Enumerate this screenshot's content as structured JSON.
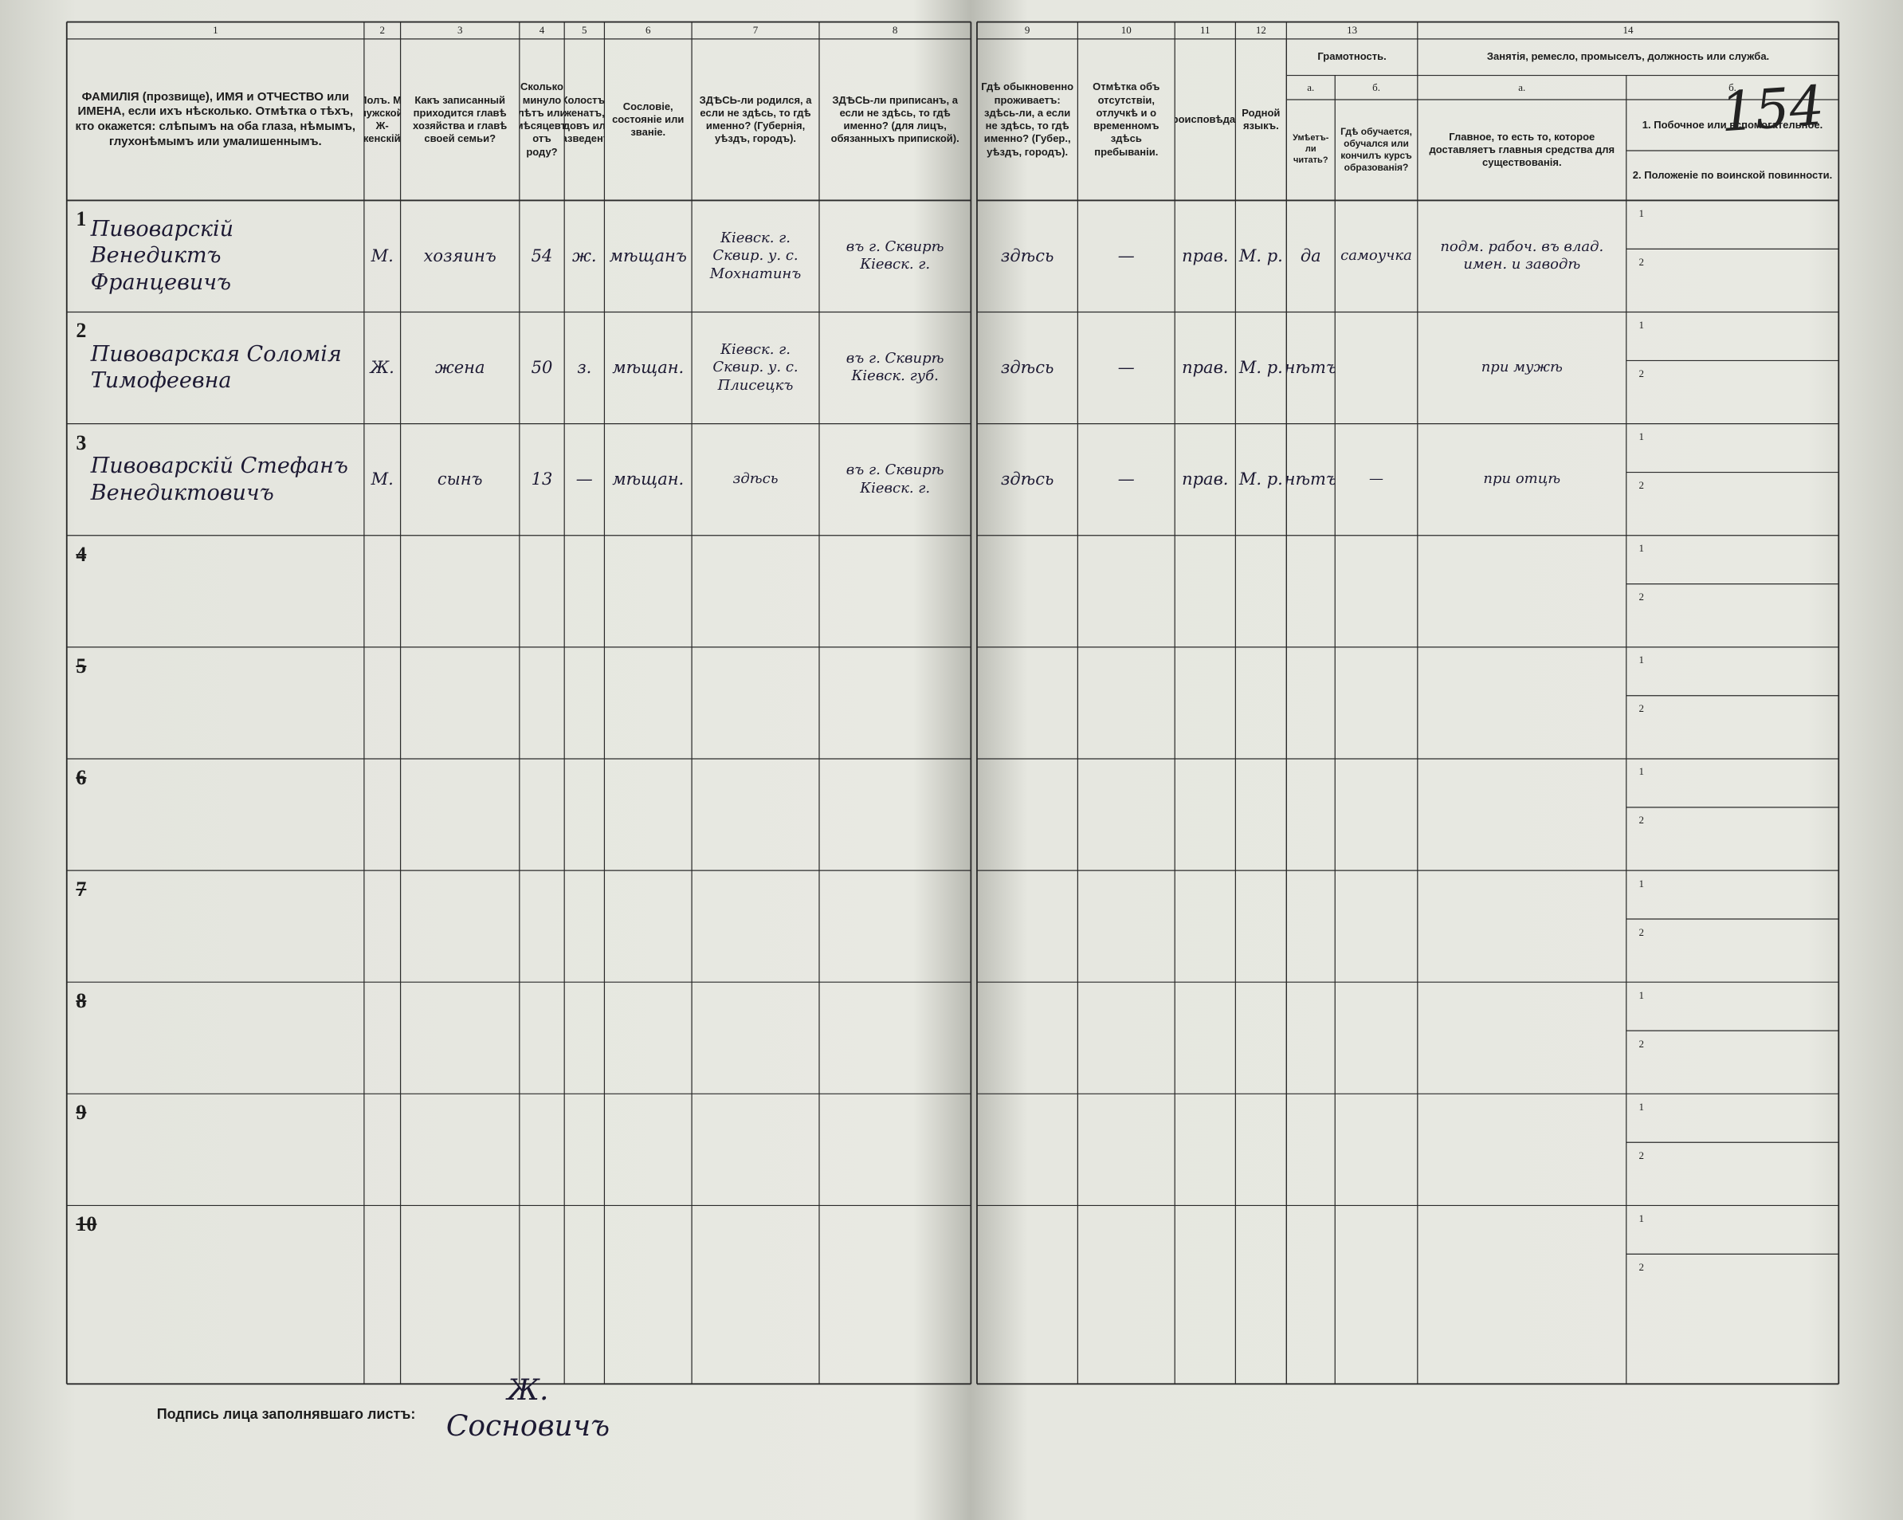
{
  "page_number": "154",
  "columns": [
    {
      "number": "1",
      "header": "ФАМИЛІЯ (прозвище), ИМЯ и ОТЧЕСТВО или ИМЕНА, если ихъ нѣсколько. Отмѣтка о тѣхъ, кто окажется: слѣпымъ на оба глаза, нѣмымъ, глухонѣмымъ или умалишеннымъ."
    },
    {
      "number": "2",
      "header": "Полъ. М-мужской. Ж-женскій."
    },
    {
      "number": "3",
      "header": "Какъ записанный приходится главѣ хозяйства и главѣ своей семьи?"
    },
    {
      "number": "4",
      "header": "Сколько минуло лѣтъ или мѣсяцевъ отъ роду?"
    },
    {
      "number": "5",
      "header": "Холостъ, женатъ, вдовъ или разведенъ."
    },
    {
      "number": "6",
      "header": "Сословіе, состояніе или званіе."
    },
    {
      "number": "7",
      "header": "ЗДѢСЬ-ли родился, а если не здѣсь, то гдѣ именно? (Губернія, уѣздъ, городъ)."
    },
    {
      "number": "8",
      "header": "ЗДѢСЬ-ли приписанъ, а если не здѣсь, то гдѣ именно? (для лицъ, обязанныхъ припиской)."
    },
    {
      "number": "9",
      "header": "Гдѣ обыкновенно проживаетъ: здѣсь-ли, а если не здѣсь, то гдѣ именно? (Губер., уѣздъ, городъ)."
    },
    {
      "number": "10",
      "header": "Отмѣтка объ отсутствіи, отлучкѣ и о временномъ здѣсь пребываніи."
    },
    {
      "number": "11",
      "header": "Вѣроисповѣданіе."
    },
    {
      "number": "12",
      "header": "Родной языкъ."
    }
  ],
  "literacy": {
    "number": "13",
    "title": "Грамотность.",
    "a": {
      "letter": "а.",
      "header": "Умѣетъ-ли читать?"
    },
    "b": {
      "letter": "б.",
      "header": "Гдѣ обучается, обучался или кончилъ курсъ образованія?"
    }
  },
  "occupation": {
    "number": "14",
    "title": "Занятія, ремесло, промыселъ, должность или служба.",
    "a": {
      "letter": "а.",
      "header": "Главное, то есть то, которое доставляетъ главныя средства для существованія."
    },
    "b": {
      "letter": "б.",
      "lines": [
        "1. Побочное или вспомогательное.",
        "2. Положеніе по воинской повинности."
      ]
    }
  },
  "row_line_labels": [
    "1",
    "2"
  ],
  "rows": [
    {
      "number": "1",
      "name": "Пивоварскій Венедиктъ Францевичъ",
      "sex": "М.",
      "relation": "хозяинъ",
      "age": "54",
      "marital": "ж.",
      "estate": "мѣщанъ",
      "birth": "Кіевск. г. Сквир. у. с. Мохнатинъ",
      "registered": "въ г. Сквирѣ Кіевск. г.",
      "residence": "здѣсь",
      "absence": "—",
      "religion": "прав.",
      "language": "М. р.",
      "literate": "да",
      "education": "самоучка",
      "occupation": "подм. рабоч. въ влад. имен. и заводѣ"
    },
    {
      "number": "2",
      "name": "Пивоварская Соломія Тимофеевна",
      "sex": "Ж.",
      "relation": "жена",
      "age": "50",
      "marital": "з.",
      "estate": "мѣщан.",
      "birth": "Кіевск. г. Сквир. у. с. Плисецкъ",
      "registered": "въ г. Сквирѣ Кіевск. губ.",
      "residence": "здѣсь",
      "absence": "—",
      "religion": "прав.",
      "language": "М. р.",
      "literate": "нѣтъ",
      "occupation": "при мужѣ"
    },
    {
      "number": "3",
      "name": "Пивоварскій Стефанъ Венедиктовичъ",
      "sex": "М.",
      "relation": "сынъ",
      "age": "13",
      "marital": "—",
      "estate": "мѣщан.",
      "birth": "здѣсь",
      "registered": "въ г. Сквирѣ Кіевск. г.",
      "residence": "здѣсь",
      "absence": "—",
      "religion": "прав.",
      "language": "М. р.",
      "literate": "нѣтъ",
      "education": "—",
      "occupation": "при отцѣ"
    },
    {
      "number": "4"
    },
    {
      "number": "5"
    },
    {
      "number": "6"
    },
    {
      "number": "7"
    },
    {
      "number": "8"
    },
    {
      "number": "9"
    },
    {
      "number": "10"
    }
  ],
  "signature_label": "Подпись лица заполнявшаго листъ:",
  "signature": "Ж. Сосновичъ"
}
